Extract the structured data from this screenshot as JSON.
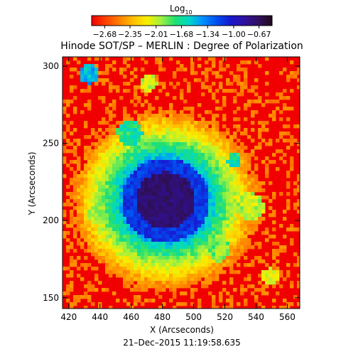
{
  "chart_data": {
    "type": "heatmap",
    "title": "Hinode SOT/SP – MERLIN : Degree of Polarization",
    "xlabel": "X (Arcseconds)",
    "ylabel": "Y (Arcseconds)",
    "xlim": [
      416,
      568
    ],
    "ylim": [
      143,
      306
    ],
    "x_ticks": [
      420,
      440,
      460,
      480,
      500,
      520,
      540,
      560
    ],
    "y_ticks": [
      150,
      200,
      250,
      300
    ],
    "colorbar": {
      "label_main": "Log",
      "label_sub": "10",
      "range": [
        -2.85,
        -0.5
      ],
      "tick_labels": [
        "−2.68",
        "−2.35",
        "−2.01",
        "−1.68",
        "−1.34",
        "−1.00",
        "−0.67"
      ],
      "tick_values": [
        -2.68,
        -2.35,
        -2.01,
        -1.68,
        -1.34,
        -1.0,
        -0.67
      ],
      "colors": [
        "#f00000",
        "#ff4000",
        "#ff8000",
        "#ffc000",
        "#f8f000",
        "#a0f040",
        "#20e070",
        "#00d8c8",
        "#0090ff",
        "#0050f0",
        "#1818d0",
        "#3010a0",
        "#301060",
        "#200818"
      ]
    },
    "features": {
      "umbra_center": [
        482,
        213
      ],
      "umbra_value": -0.7,
      "penumbra_value": -1.4,
      "quiet_sun_value": -2.6
    }
  },
  "footer": {
    "timestamp": "21–Dec–2015 11:19:58.635"
  }
}
